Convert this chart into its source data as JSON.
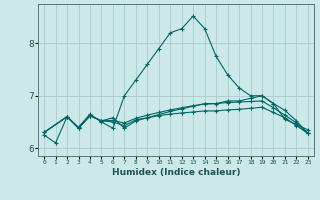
{
  "xlabel": "Humidex (Indice chaleur)",
  "ylabel": "",
  "background_color": "#cce8e8",
  "grid_color": "#aacccc",
  "line_color": "#006666",
  "xlim": [
    -0.5,
    23.5
  ],
  "ylim": [
    5.85,
    8.75
  ],
  "xticks": [
    0,
    1,
    2,
    3,
    4,
    5,
    6,
    7,
    8,
    9,
    10,
    11,
    12,
    13,
    14,
    15,
    16,
    17,
    18,
    19,
    20,
    21,
    22,
    23
  ],
  "yticks": [
    6,
    7,
    8
  ],
  "line1_x": [
    0,
    1,
    2,
    3,
    4,
    5,
    6,
    7,
    8,
    9,
    10,
    11,
    12,
    13,
    14,
    15,
    16,
    17,
    18,
    19,
    20,
    21,
    22,
    23
  ],
  "line1_y": [
    6.25,
    6.1,
    6.6,
    6.4,
    6.65,
    6.5,
    6.38,
    7.0,
    7.3,
    7.6,
    7.9,
    8.2,
    8.28,
    8.52,
    8.28,
    7.75,
    7.4,
    7.15,
    7.0,
    7.0,
    6.85,
    6.55,
    6.45,
    6.35
  ],
  "line2_x": [
    0,
    2,
    3,
    4,
    5,
    6,
    7,
    8,
    9,
    10,
    11,
    12,
    13,
    14,
    15,
    16,
    17,
    18,
    19,
    20,
    21,
    22,
    23
  ],
  "line2_y": [
    6.3,
    6.6,
    6.38,
    6.62,
    6.52,
    6.58,
    6.38,
    6.52,
    6.58,
    6.64,
    6.7,
    6.75,
    6.8,
    6.85,
    6.85,
    6.9,
    6.9,
    6.95,
    7.0,
    6.85,
    6.72,
    6.52,
    6.28
  ],
  "line3_x": [
    0,
    2,
    3,
    4,
    5,
    6,
    7,
    8,
    9,
    10,
    11,
    12,
    13,
    14,
    15,
    16,
    17,
    18,
    19,
    20,
    21,
    22,
    23
  ],
  "line3_y": [
    6.3,
    6.6,
    6.38,
    6.62,
    6.52,
    6.53,
    6.48,
    6.57,
    6.63,
    6.68,
    6.73,
    6.77,
    6.81,
    6.84,
    6.85,
    6.87,
    6.88,
    6.89,
    6.9,
    6.77,
    6.63,
    6.48,
    6.28
  ],
  "line4_x": [
    0,
    2,
    3,
    4,
    5,
    6,
    7,
    8,
    9,
    10,
    11,
    12,
    13,
    14,
    15,
    16,
    17,
    18,
    19,
    20,
    21,
    22,
    23
  ],
  "line4_y": [
    6.3,
    6.6,
    6.38,
    6.62,
    6.52,
    6.5,
    6.43,
    6.54,
    6.58,
    6.62,
    6.65,
    6.67,
    6.69,
    6.71,
    6.71,
    6.73,
    6.74,
    6.76,
    6.78,
    6.68,
    6.58,
    6.43,
    6.28
  ]
}
